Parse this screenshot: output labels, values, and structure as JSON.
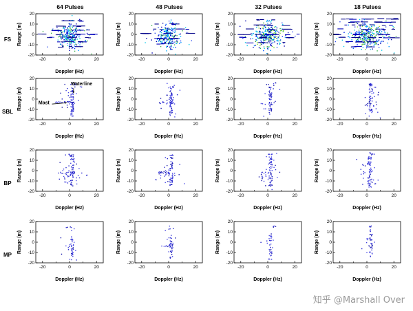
{
  "watermark": {
    "text": "知乎 @Marshall Over"
  },
  "chart_data": {
    "type": "scatter",
    "description": "4x4 grid of radar range-Doppler scatter plots comparing 4 processing methods (rows FS, SBL, BP, MP) across pulse counts (columns 64, 48, 32, 18 pulses)",
    "grid": {
      "rows": [
        "FS",
        "SBL",
        "BP",
        "MP"
      ],
      "cols": [
        "64 Pulses",
        "48 Pulses",
        "32 Pulses",
        "18 Pulses"
      ]
    },
    "xlabel": "Doppler (Hz)",
    "ylabel": "Range (m)",
    "xlim": [
      -25,
      25
    ],
    "ylim": [
      -20,
      20
    ],
    "xticks_major": [
      -20,
      0,
      20
    ],
    "xticks_minor": [
      -10,
      10
    ],
    "yticks": [
      -20,
      -10,
      0,
      10,
      20
    ],
    "legend": "none",
    "grid_lines": "off",
    "palettes": {
      "navy": [
        "#00008b",
        "#0000bb",
        "#101090"
      ],
      "blue": [
        "#2323cc",
        "#3d3dde",
        "#1515aa",
        "#4646e6"
      ],
      "fsA": [
        "#0000cc",
        "#0030ff",
        "#00aaff",
        "#00d8c8",
        "#3fae4a",
        "#0066ff",
        "#0000a0"
      ],
      "fsB": [
        "#0000b0",
        "#2b49ee",
        "#0598ff",
        "#03c8ea",
        "#37b24d"
      ],
      "fsG": [
        "#29a329",
        "#7fd12a",
        "#02b9e6",
        "#0454ff",
        "#0000c0"
      ]
    },
    "subplots": [
      [
        {
          "seed": 11,
          "clusters": [
            {
              "t": "g",
              "n": 150,
              "cx": 0,
              "cy": -1,
              "sx": 3.2,
              "sy": 5,
              "p": "fsA"
            },
            {
              "t": "g",
              "n": 80,
              "cx": -1,
              "cy": -2,
              "sx": 7.5,
              "sy": 6.5,
              "p": "fsB"
            },
            {
              "t": "v",
              "n": 22,
              "x": 1,
              "j": 1.6,
              "y0": -16,
              "y1": 15,
              "p": "fsB"
            },
            {
              "t": "d",
              "n": 9,
              "y": 0,
              "x0": -23,
              "x1": 23,
              "p": "navy"
            },
            {
              "t": "d",
              "n": 7,
              "y": -3,
              "x0": -19,
              "x1": 18,
              "p": "navy"
            },
            {
              "t": "d",
              "n": 6,
              "y": 4,
              "x0": -14,
              "x1": 16,
              "p": "navy"
            },
            {
              "t": "d",
              "n": 5,
              "y": 8,
              "x0": -11,
              "x1": 12,
              "p": "navy"
            },
            {
              "t": "d",
              "n": 4,
              "y": 13,
              "x0": -7,
              "x1": 10,
              "p": "navy"
            },
            {
              "t": "d",
              "n": 5,
              "y": -7,
              "x0": -13,
              "x1": 11,
              "p": "navy"
            },
            {
              "t": "d",
              "n": 3,
              "y": -12,
              "x0": -8,
              "x1": 8,
              "p": "navy"
            }
          ]
        },
        {
          "seed": 12,
          "clusters": [
            {
              "t": "g",
              "n": 140,
              "cx": 0,
              "cy": -1,
              "sx": 3.4,
              "sy": 5.2,
              "p": "fsA"
            },
            {
              "t": "g",
              "n": 70,
              "cx": 0,
              "cy": -2,
              "sx": 7.5,
              "sy": 6.5,
              "p": "fsB"
            },
            {
              "t": "v",
              "n": 20,
              "x": 1,
              "j": 1.5,
              "y0": -15,
              "y1": 14,
              "p": "fsB"
            },
            {
              "t": "d",
              "n": 8,
              "y": 1,
              "x0": -20,
              "x1": 21,
              "p": "navy"
            },
            {
              "t": "d",
              "n": 6,
              "y": -4,
              "x0": -17,
              "x1": 15,
              "p": "navy"
            },
            {
              "t": "d",
              "n": 5,
              "y": 5,
              "x0": -12,
              "x1": 14,
              "p": "navy"
            },
            {
              "t": "d",
              "n": 4,
              "y": 10,
              "x0": -9,
              "x1": 11,
              "p": "navy"
            },
            {
              "t": "d",
              "n": 4,
              "y": -9,
              "x0": -11,
              "x1": 9,
              "p": "navy"
            }
          ]
        },
        {
          "seed": 13,
          "clusters": [
            {
              "t": "g",
              "n": 170,
              "cx": 0,
              "cy": -1,
              "sx": 4.5,
              "sy": 5.5,
              "p": "fsG"
            },
            {
              "t": "g",
              "n": 90,
              "cx": 0,
              "cy": -2,
              "sx": 9,
              "sy": 7,
              "p": "fsB"
            },
            {
              "t": "v",
              "n": 22,
              "x": 1,
              "j": 1.8,
              "y0": -16,
              "y1": 15,
              "p": "fsB"
            },
            {
              "t": "d",
              "n": 9,
              "y": 0,
              "x0": -23,
              "x1": 23,
              "p": "navy"
            },
            {
              "t": "d",
              "n": 7,
              "y": -3,
              "x0": -21,
              "x1": 20,
              "p": "navy"
            },
            {
              "t": "d",
              "n": 6,
              "y": 5,
              "x0": -17,
              "x1": 18,
              "p": "navy"
            },
            {
              "t": "d",
              "n": 5,
              "y": 9,
              "x0": -13,
              "x1": 14,
              "p": "navy"
            },
            {
              "t": "d",
              "n": 4,
              "y": 14,
              "x0": -9,
              "x1": 12,
              "p": "navy"
            },
            {
              "t": "d",
              "n": 5,
              "y": -8,
              "x0": -15,
              "x1": 13,
              "p": "navy"
            }
          ]
        },
        {
          "seed": 14,
          "clusters": [
            {
              "t": "g",
              "n": 190,
              "cx": 0,
              "cy": -1,
              "sx": 6,
              "sy": 5,
              "p": "fsG"
            },
            {
              "t": "g",
              "n": 110,
              "cx": 0,
              "cy": -2,
              "sx": 12,
              "sy": 7,
              "p": "fsB"
            },
            {
              "t": "d",
              "n": 12,
              "y": 15,
              "x0": -22,
              "x1": 24,
              "p": "navy"
            },
            {
              "t": "d",
              "n": 8,
              "y": 12,
              "x0": -14,
              "x1": 22,
              "p": "navy"
            },
            {
              "t": "d",
              "n": 10,
              "y": 0,
              "x0": -24,
              "x1": 24,
              "p": "navy"
            },
            {
              "t": "d",
              "n": 9,
              "y": -3,
              "x0": -24,
              "x1": 22,
              "p": "navy"
            },
            {
              "t": "d",
              "n": 8,
              "y": 5,
              "x0": -20,
              "x1": 21,
              "p": "navy"
            },
            {
              "t": "d",
              "n": 7,
              "y": -7,
              "x0": -18,
              "x1": 17,
              "p": "navy"
            },
            {
              "t": "d",
              "n": 6,
              "y": 9,
              "x0": -16,
              "x1": 18,
              "p": "navy"
            },
            {
              "t": "d",
              "n": 4,
              "y": -12,
              "x0": -12,
              "x1": 12,
              "p": "navy"
            }
          ]
        }
      ],
      [
        {
          "seed": 21,
          "clusters": [
            {
              "t": "v",
              "n": 55,
              "x": 2,
              "j": 1,
              "y0": -18,
              "y1": 13,
              "p": "blue"
            },
            {
              "t": "h",
              "n": 20,
              "y": -3,
              "j": 0.7,
              "x0": -13,
              "x1": 4,
              "p": "blue"
            },
            {
              "t": "g",
              "n": 22,
              "cx": 2,
              "cy": 1,
              "sx": 3.5,
              "sy": 7,
              "p": "blue"
            },
            {
              "t": "g",
              "n": 6,
              "cx": 3,
              "cy": 14,
              "sx": 2,
              "sy": 1.5,
              "p": "blue"
            }
          ],
          "ann": [
            {
              "text": "Waterline",
              "tx": 1,
              "ty": 13.5,
              "anchor": "start",
              "ax": [
                3,
                10.5,
                3,
                5.5
              ]
            },
            {
              "text": "Mast",
              "tx": -23,
              "ty": -5,
              "anchor": "start",
              "ax": [
                -13,
                -4.8,
                -2,
                -3.6
              ]
            }
          ]
        },
        {
          "seed": 22,
          "clusters": [
            {
              "t": "v",
              "n": 48,
              "x": 2,
              "j": 1.1,
              "y0": -16,
              "y1": 13,
              "p": "blue"
            },
            {
              "t": "g",
              "n": 20,
              "cx": 2,
              "cy": -2,
              "sx": 3,
              "sy": 7,
              "p": "blue"
            },
            {
              "t": "h",
              "n": 10,
              "y": -4,
              "j": 0.7,
              "x0": -7,
              "x1": 4,
              "p": "blue"
            },
            {
              "t": "g",
              "n": 5,
              "cx": 2,
              "cy": 13,
              "sx": 2,
              "sy": 1.5,
              "p": "blue"
            }
          ]
        },
        {
          "seed": 23,
          "clusters": [
            {
              "t": "v",
              "n": 40,
              "x": 2,
              "j": 1.1,
              "y0": -15,
              "y1": 12,
              "p": "blue"
            },
            {
              "t": "g",
              "n": 16,
              "cx": 2,
              "cy": -1,
              "sx": 3,
              "sy": 7,
              "p": "blue"
            },
            {
              "t": "h",
              "n": 7,
              "y": -5,
              "j": 0.7,
              "x0": -5,
              "x1": 4,
              "p": "blue"
            },
            {
              "t": "g",
              "n": 5,
              "cx": 3,
              "cy": 14,
              "sx": 2,
              "sy": 1.5,
              "p": "blue"
            }
          ]
        },
        {
          "seed": 24,
          "clusters": [
            {
              "t": "v",
              "n": 45,
              "x": 3,
              "j": 1.4,
              "y0": -14,
              "y1": 16,
              "p": "blue"
            },
            {
              "t": "g",
              "n": 22,
              "cx": 3,
              "cy": 0,
              "sx": 3,
              "sy": 8,
              "p": "blue"
            },
            {
              "t": "h",
              "n": 6,
              "y": -6,
              "j": 0.8,
              "x0": -2,
              "x1": 7,
              "p": "blue"
            }
          ]
        }
      ],
      [
        {
          "seed": 31,
          "clusters": [
            {
              "t": "v",
              "n": 42,
              "x": 2,
              "j": 1.2,
              "y0": -15,
              "y1": 16,
              "p": "blue"
            },
            {
              "t": "g",
              "n": 40,
              "cx": 0,
              "cy": -4,
              "sx": 4.5,
              "sy": 5,
              "p": "blue"
            },
            {
              "t": "h",
              "n": 12,
              "y": -2,
              "j": 0.8,
              "x0": -10,
              "x1": 5,
              "p": "blue"
            },
            {
              "t": "g",
              "n": 7,
              "cx": 1,
              "cy": 14,
              "sx": 2.5,
              "sy": 1.8,
              "p": "blue"
            }
          ]
        },
        {
          "seed": 32,
          "clusters": [
            {
              "t": "v",
              "n": 40,
              "x": 2,
              "j": 1.2,
              "y0": -15,
              "y1": 15,
              "p": "blue"
            },
            {
              "t": "g",
              "n": 36,
              "cx": 0,
              "cy": -4,
              "sx": 4,
              "sy": 5,
              "p": "blue"
            },
            {
              "t": "h",
              "n": 10,
              "y": -2,
              "j": 0.8,
              "x0": -8,
              "x1": 5,
              "p": "blue"
            },
            {
              "t": "g",
              "n": 6,
              "cx": 1,
              "cy": 13,
              "sx": 2.5,
              "sy": 1.8,
              "p": "blue"
            }
          ]
        },
        {
          "seed": 33,
          "clusters": [
            {
              "t": "v",
              "n": 44,
              "x": 2,
              "j": 1.3,
              "y0": -16,
              "y1": 16,
              "p": "blue"
            },
            {
              "t": "g",
              "n": 34,
              "cx": 1,
              "cy": -3,
              "sx": 4,
              "sy": 6,
              "p": "blue"
            },
            {
              "t": "g",
              "n": 6,
              "cx": 1,
              "cy": 15,
              "sx": 2,
              "sy": 1.5,
              "p": "blue"
            }
          ]
        },
        {
          "seed": 34,
          "clusters": [
            {
              "t": "v",
              "n": 46,
              "x": 2,
              "j": 1.2,
              "y0": -17,
              "y1": 14,
              "p": "blue"
            },
            {
              "t": "g",
              "n": 30,
              "cx": 1,
              "cy": -2,
              "sx": 3.5,
              "sy": 7,
              "p": "blue"
            },
            {
              "t": "g",
              "n": 5,
              "cx": 2,
              "cy": 16,
              "sx": 2,
              "sy": 1,
              "p": "blue"
            }
          ]
        }
      ],
      [
        {
          "seed": 41,
          "clusters": [
            {
              "t": "v",
              "n": 28,
              "x": 2,
              "j": 1,
              "y0": -17,
              "y1": 6,
              "p": "blue"
            },
            {
              "t": "g",
              "n": 14,
              "cx": 0,
              "cy": -6,
              "sx": 4,
              "sy": 5,
              "p": "blue"
            },
            {
              "t": "g",
              "n": 6,
              "cx": 1,
              "cy": 13,
              "sx": 2,
              "sy": 2,
              "p": "blue"
            }
          ]
        },
        {
          "seed": 42,
          "clusters": [
            {
              "t": "v",
              "n": 27,
              "x": 2,
              "j": 1,
              "y0": -16,
              "y1": 8,
              "p": "blue"
            },
            {
              "t": "h",
              "n": 7,
              "y": -4,
              "j": 0.7,
              "x0": -6,
              "x1": 3,
              "p": "blue"
            },
            {
              "t": "g",
              "n": 10,
              "cx": 1,
              "cy": -3,
              "sx": 3,
              "sy": 5,
              "p": "blue"
            },
            {
              "t": "g",
              "n": 5,
              "cx": 2,
              "cy": 14,
              "sx": 2,
              "sy": 1.5,
              "p": "blue"
            }
          ]
        },
        {
          "seed": 43,
          "clusters": [
            {
              "t": "v",
              "n": 25,
              "x": 2,
              "j": 1,
              "y0": -18,
              "y1": 8,
              "p": "blue"
            },
            {
              "t": "g",
              "n": 10,
              "cx": 1,
              "cy": -4,
              "sx": 3,
              "sy": 5,
              "p": "blue"
            },
            {
              "t": "g",
              "n": 4,
              "cx": 2,
              "cy": 15,
              "sx": 2,
              "sy": 1.2,
              "p": "blue"
            }
          ]
        },
        {
          "seed": 44,
          "clusters": [
            {
              "t": "v",
              "n": 28,
              "x": 3,
              "j": 1.2,
              "y0": -15,
              "y1": 12,
              "p": "blue"
            },
            {
              "t": "g",
              "n": 12,
              "cx": 2,
              "cy": 0,
              "sx": 3,
              "sy": 6,
              "p": "blue"
            },
            {
              "t": "g",
              "n": 4,
              "cx": 3,
              "cy": 15,
              "sx": 1.5,
              "sy": 1,
              "p": "blue"
            }
          ]
        }
      ]
    ]
  }
}
